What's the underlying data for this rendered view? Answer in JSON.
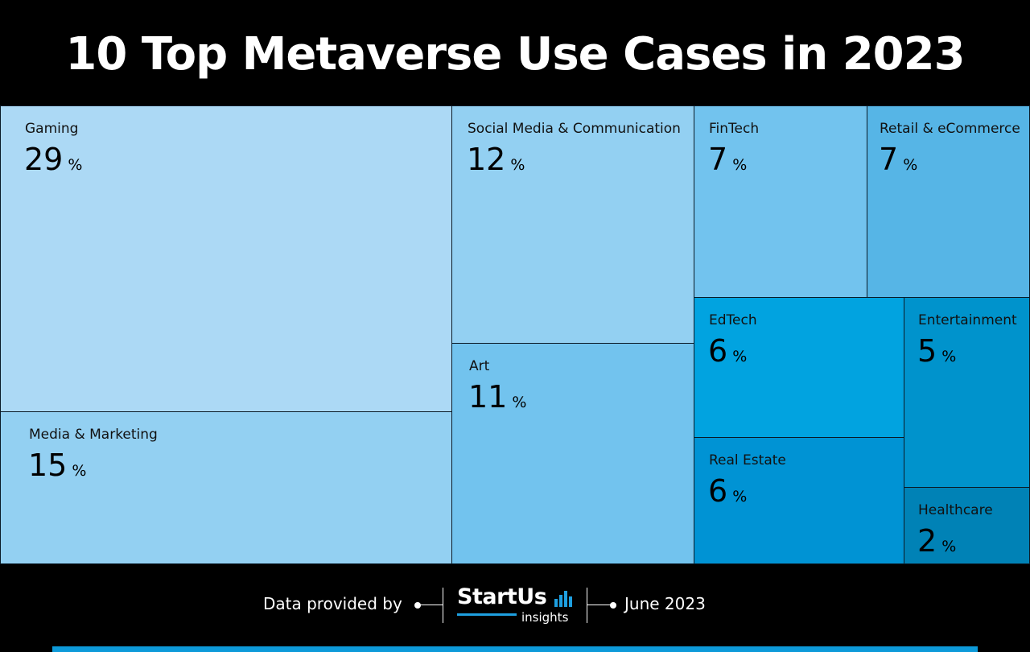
{
  "title": "10 Top Metaverse Use Cases in 2023",
  "chart_data": {
    "type": "treemap",
    "title": "10 Top Metaverse Use Cases in 2023",
    "unit": "%",
    "items": [
      {
        "label": "Gaming",
        "value": 29,
        "color": "#acd9f5"
      },
      {
        "label": "Media & Marketing",
        "value": 15,
        "color": "#93d0f2"
      },
      {
        "label": "Social Media & Communication",
        "value": 12,
        "color": "#93d0f2"
      },
      {
        "label": "Art",
        "value": 11,
        "color": "#72c3ee"
      },
      {
        "label": "FinTech",
        "value": 7,
        "color": "#72c3ee"
      },
      {
        "label": "Retail & eCommerce",
        "value": 7,
        "color": "#56b5e6"
      },
      {
        "label": "EdTech",
        "value": 6,
        "color": "#01a3e0"
      },
      {
        "label": "Entertainment",
        "value": 5,
        "color": "#0093cc"
      },
      {
        "label": "Real Estate",
        "value": 6,
        "color": "#0093d4"
      },
      {
        "label": "Healthcare",
        "value": 2,
        "color": "#0082b6"
      }
    ]
  },
  "footer": {
    "provided_by": "Data provided by",
    "brand": "StartUs",
    "brand_sub": "insights",
    "date": "June 2023"
  },
  "colors": {
    "accent": "#0d9ad9",
    "background": "#000000"
  }
}
